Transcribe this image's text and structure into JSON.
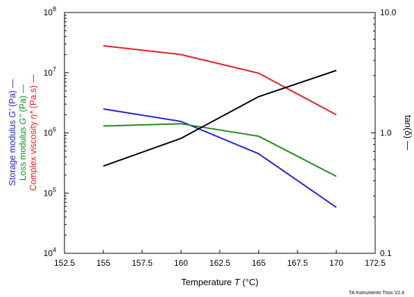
{
  "chart_data": {
    "type": "line",
    "x": [
      155,
      160,
      165,
      170
    ],
    "xlabel": "Temperature",
    "xlabel_symbol": "T",
    "xlabel_unit": "(°C)",
    "xlim": [
      152.5,
      172.5
    ],
    "xticks": [
      152.5,
      155,
      157.5,
      160,
      162.5,
      165,
      167.5,
      170,
      172.5
    ],
    "xtick_labels": [
      "152.5",
      "155",
      "157.5",
      "160",
      "162.5",
      "165",
      "167.5",
      "170",
      "172.5"
    ],
    "left_axis": {
      "scale": "log",
      "ylim": [
        10000,
        100000000
      ],
      "tick_mantissa": "10",
      "tick_exponents": [
        "4",
        "5",
        "6",
        "7",
        "8"
      ],
      "label_lines": [
        {
          "parts": [
            {
              "text": "Storage modulus ",
              "color": "#2020e0",
              "italic": false
            },
            {
              "text": "G'",
              "color": "#2020e0",
              "italic": true
            },
            {
              "text": " (Pa) —",
              "color": "#2020e0",
              "italic": false
            }
          ]
        },
        {
          "parts": [
            {
              "text": "Loss modulus ",
              "color": "#1a8a1a",
              "italic": false
            },
            {
              "text": "G''",
              "color": "#1a8a1a",
              "italic": true
            },
            {
              "text": " (Pa) —",
              "color": "#1a8a1a",
              "italic": false
            }
          ]
        },
        {
          "parts": [
            {
              "text": "Complex viscosity ",
              "color": "#e02020",
              "italic": false
            },
            {
              "text": "η*",
              "color": "#e02020",
              "italic": true
            },
            {
              "text": " (Pa.s) —",
              "color": "#e02020",
              "italic": false
            }
          ]
        }
      ]
    },
    "right_axis": {
      "scale": "log",
      "ylim": [
        0.1,
        10.0
      ],
      "ticks": [
        0.1,
        1.0,
        10.0
      ],
      "tick_labels": [
        "0.1",
        "1.0",
        "10.0"
      ],
      "label": "tan(δ) —",
      "color": "#000000"
    },
    "series": [
      {
        "name": "Storage modulus G'",
        "axis": "left",
        "color": "#2020e0",
        "values": [
          2500000,
          1550000,
          450000,
          58000
        ]
      },
      {
        "name": "Loss modulus G''",
        "axis": "left",
        "color": "#1a8a1a",
        "values": [
          1300000,
          1420000,
          880000,
          190000
        ]
      },
      {
        "name": "Complex viscosity η*",
        "axis": "left",
        "color": "#e02020",
        "values": [
          28000000,
          20000000,
          9800000,
          2000000
        ]
      },
      {
        "name": "tan(δ)",
        "axis": "right",
        "color": "#000000",
        "values": [
          0.53,
          0.9,
          2.0,
          3.3
        ]
      }
    ],
    "grid": false,
    "legend": "none"
  },
  "footer": {
    "credit": "TA Instruments Trios V2.4"
  }
}
